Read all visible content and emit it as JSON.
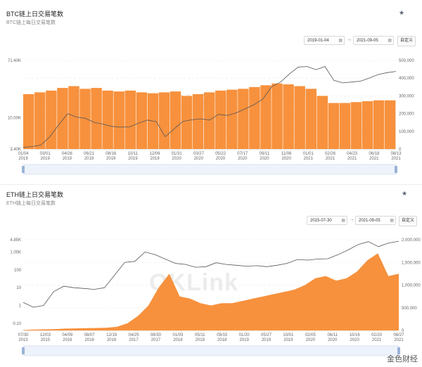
{
  "btc": {
    "title": "BTC链上日交易笔数",
    "subtitle": "BTC链上每日交易笔数",
    "date_start": "2019-01-04",
    "date_end": "2021-09-05",
    "custom_label": "自定义",
    "watermark": "OKLink"
  },
  "eth": {
    "title": "ETH链上日交易笔数",
    "subtitle": "ETH链上每日交易笔数",
    "date_start": "2015-07-30",
    "date_end": "2021-09-05",
    "custom_label": "自定义",
    "watermark": "OKLink"
  },
  "brand": "金色财经",
  "chart_data": [
    {
      "type": "bar",
      "title": "BTC链上日交易笔数",
      "y_left_ticks": [
        "71.40K",
        "10.00K",
        "3.40K"
      ],
      "y_left_scale": "log",
      "y_left_range": [
        3400,
        71400
      ],
      "y_right_ticks": [
        "500,000",
        "400,000",
        "300,000",
        "200,000",
        "100,000",
        "0"
      ],
      "y_right_range": [
        0,
        500000
      ],
      "x_ticks": [
        "01/04\n2019",
        "03/01\n2019",
        "04/26\n2019",
        "06/21\n2019",
        "08/16\n2019",
        "10/11\n2019",
        "12/06\n2019",
        "01/31\n2020",
        "03/27\n2020",
        "05/22\n2020",
        "07/17\n2020",
        "09/11\n2020",
        "11/06\n2020",
        "01/01\n2021",
        "02/26\n2021",
        "04/23\n2021",
        "06/18\n2021",
        "08/13\n2021"
      ],
      "series": [
        {
          "kind": "bars",
          "color": "#f7913d",
          "values": [
            310000,
            320000,
            330000,
            345000,
            355000,
            340000,
            345000,
            330000,
            325000,
            330000,
            320000,
            315000,
            320000,
            325000,
            300000,
            310000,
            320000,
            330000,
            335000,
            340000,
            350000,
            360000,
            370000,
            365000,
            355000,
            340000,
            300000,
            260000,
            260000,
            265000,
            270000,
            275000,
            275000
          ]
        },
        {
          "kind": "line",
          "color": "#555555",
          "values": [
            3600,
            3700,
            3900,
            5200,
            7800,
            11500,
            10200,
            9800,
            8500,
            8000,
            7400,
            7200,
            7300,
            8300,
            9200,
            8700,
            5200,
            6800,
            8800,
            9300,
            9600,
            9200,
            11200,
            10800,
            11800,
            13500,
            15600,
            19000,
            29000,
            34000,
            45000,
            57000,
            58000,
            52000,
            58000,
            36000,
            33000,
            34000,
            35000,
            39000,
            44000,
            47000,
            49000
          ]
        }
      ]
    },
    {
      "type": "area",
      "title": "ETH链上日交易笔数",
      "y_left_ticks": [
        "4.85K",
        "1.00K",
        "100",
        "10",
        "1",
        "0.10"
      ],
      "y_left_scale": "log",
      "y_left_range": [
        0.04,
        4850
      ],
      "y_right_ticks": [
        "2,000,000",
        "1,500,000",
        "1,000,000",
        "500,000",
        "0"
      ],
      "y_right_range": [
        0,
        2000000
      ],
      "x_ticks": [
        "07/30\n2015",
        "12/03\n2015",
        "04/09\n2016",
        "08/07\n2016",
        "12/19\n2016",
        "04/25\n2017",
        "08/30\n2017",
        "01/03\n2018",
        "05/11\n2018",
        "09/15\n2018",
        "01/20\n2019",
        "05/27\n2019",
        "10/01\n2019",
        "02/05\n2020",
        "06/11\n2020",
        "10/16\n2020",
        "02/20\n2021",
        "06/27\n2021"
      ],
      "series": [
        {
          "kind": "area",
          "color": "#f7913d",
          "values": [
            10000,
            20000,
            25000,
            30000,
            40000,
            45000,
            50000,
            55000,
            60000,
            80000,
            160000,
            320000,
            550000,
            950000,
            1250000,
            750000,
            700000,
            600000,
            550000,
            600000,
            600000,
            650000,
            700000,
            750000,
            800000,
            850000,
            900000,
            1000000,
            1150000,
            1200000,
            1100000,
            1150000,
            1300000,
            1550000,
            1700000,
            1200000,
            1250000
          ]
        },
        {
          "kind": "line",
          "color": "#555555",
          "values": [
            1.5,
            0.8,
            1.0,
            6,
            12,
            10,
            9,
            8,
            10,
            50,
            260,
            300,
            1000,
            700,
            400,
            230,
            200,
            140,
            150,
            250,
            200,
            180,
            160,
            170,
            150,
            180,
            230,
            380,
            350,
            400,
            420,
            700,
            1300,
            2600,
            3800,
            2000,
            3200,
            4000
          ]
        }
      ]
    }
  ]
}
